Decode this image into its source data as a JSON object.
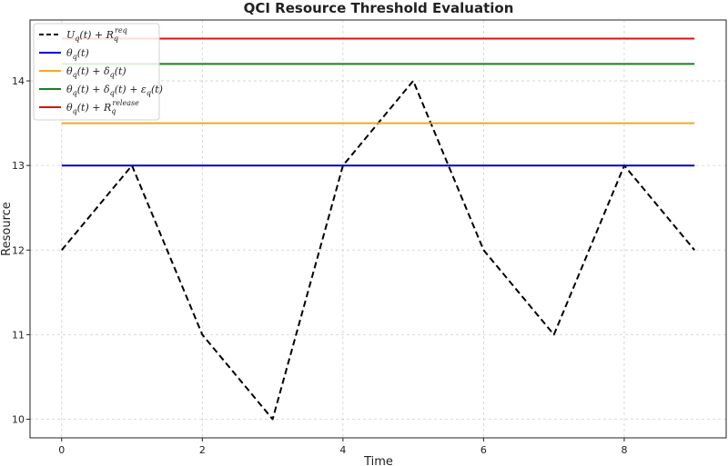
{
  "chart_data": {
    "type": "line",
    "title": "QCI Resource Threshold Evaluation",
    "xlabel": "Time",
    "ylabel": "Resource",
    "xlim": [
      -0.45,
      9.45
    ],
    "ylim": [
      9.78,
      14.72
    ],
    "xticks": [
      "0",
      "2",
      "4",
      "6",
      "8"
    ],
    "yticks": [
      "10",
      "11",
      "12",
      "13",
      "14"
    ],
    "grid": true,
    "legend_position": "top-left",
    "series": [
      {
        "name": "U_q(t) + R_q^req",
        "color": "#000000",
        "style": "dashed",
        "x": [
          0,
          1,
          2,
          3,
          4,
          5,
          6,
          7,
          8,
          9
        ],
        "values": [
          12,
          13,
          11,
          10,
          13,
          14,
          12,
          11,
          13,
          12
        ]
      },
      {
        "name": "θ_q(t)",
        "color": "#0000cc",
        "style": "solid",
        "x": [
          0,
          9
        ],
        "values": [
          13,
          13
        ]
      },
      {
        "name": "θ_q(t) + δ_q(t)",
        "color": "#f5a623",
        "style": "solid",
        "x": [
          0,
          9
        ],
        "values": [
          13.5,
          13.5
        ]
      },
      {
        "name": "θ_q(t) + δ_q(t) + ε_q(t)",
        "color": "#1a7f1a",
        "style": "solid",
        "x": [
          0,
          9
        ],
        "values": [
          14.2,
          14.2
        ]
      },
      {
        "name": "θ_q(t) + R_q^release",
        "color": "#dd1111",
        "style": "solid",
        "x": [
          0,
          9
        ],
        "values": [
          14.5,
          14.5
        ]
      }
    ]
  }
}
